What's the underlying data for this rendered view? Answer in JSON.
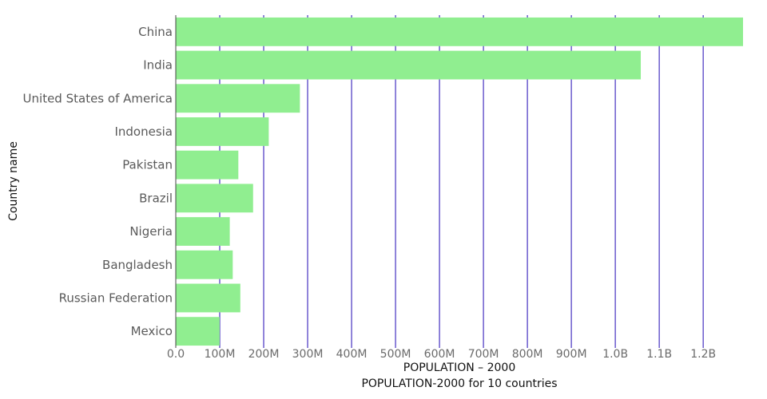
{
  "chart_data": {
    "type": "bar",
    "orientation": "horizontal",
    "categories": [
      "China",
      "India",
      "United States of America",
      "Indonesia",
      "Pakistan",
      "Brazil",
      "Nigeria",
      "Bangladesh",
      "Russian Federation",
      "Mexico"
    ],
    "values": [
      1290550765,
      1057922733,
      282398554,
      211513823,
      142343578,
      175873720,
      122851984,
      129592275,
      146844839,
      99775434
    ],
    "xlabel": "POPULATION – 2000",
    "subtitle": "POPULATION-2000 for 10 countries",
    "ylabel": "Country name",
    "xlim": [
      0,
      1290550765
    ],
    "x_ticks": [
      0,
      100000000,
      200000000,
      300000000,
      400000000,
      500000000,
      600000000,
      700000000,
      800000000,
      900000000,
      1000000000,
      1100000000,
      1200000000
    ],
    "x_tick_labels": [
      "0.0",
      "100M",
      "200M",
      "300M",
      "400M",
      "500M",
      "600M",
      "700M",
      "800M",
      "900M",
      "1.0B",
      "1.1B",
      "1.2B"
    ],
    "grid": true,
    "colors": {
      "bar": "#90ee90",
      "grid": "#6a5acd",
      "zero_line": "#444444"
    }
  }
}
